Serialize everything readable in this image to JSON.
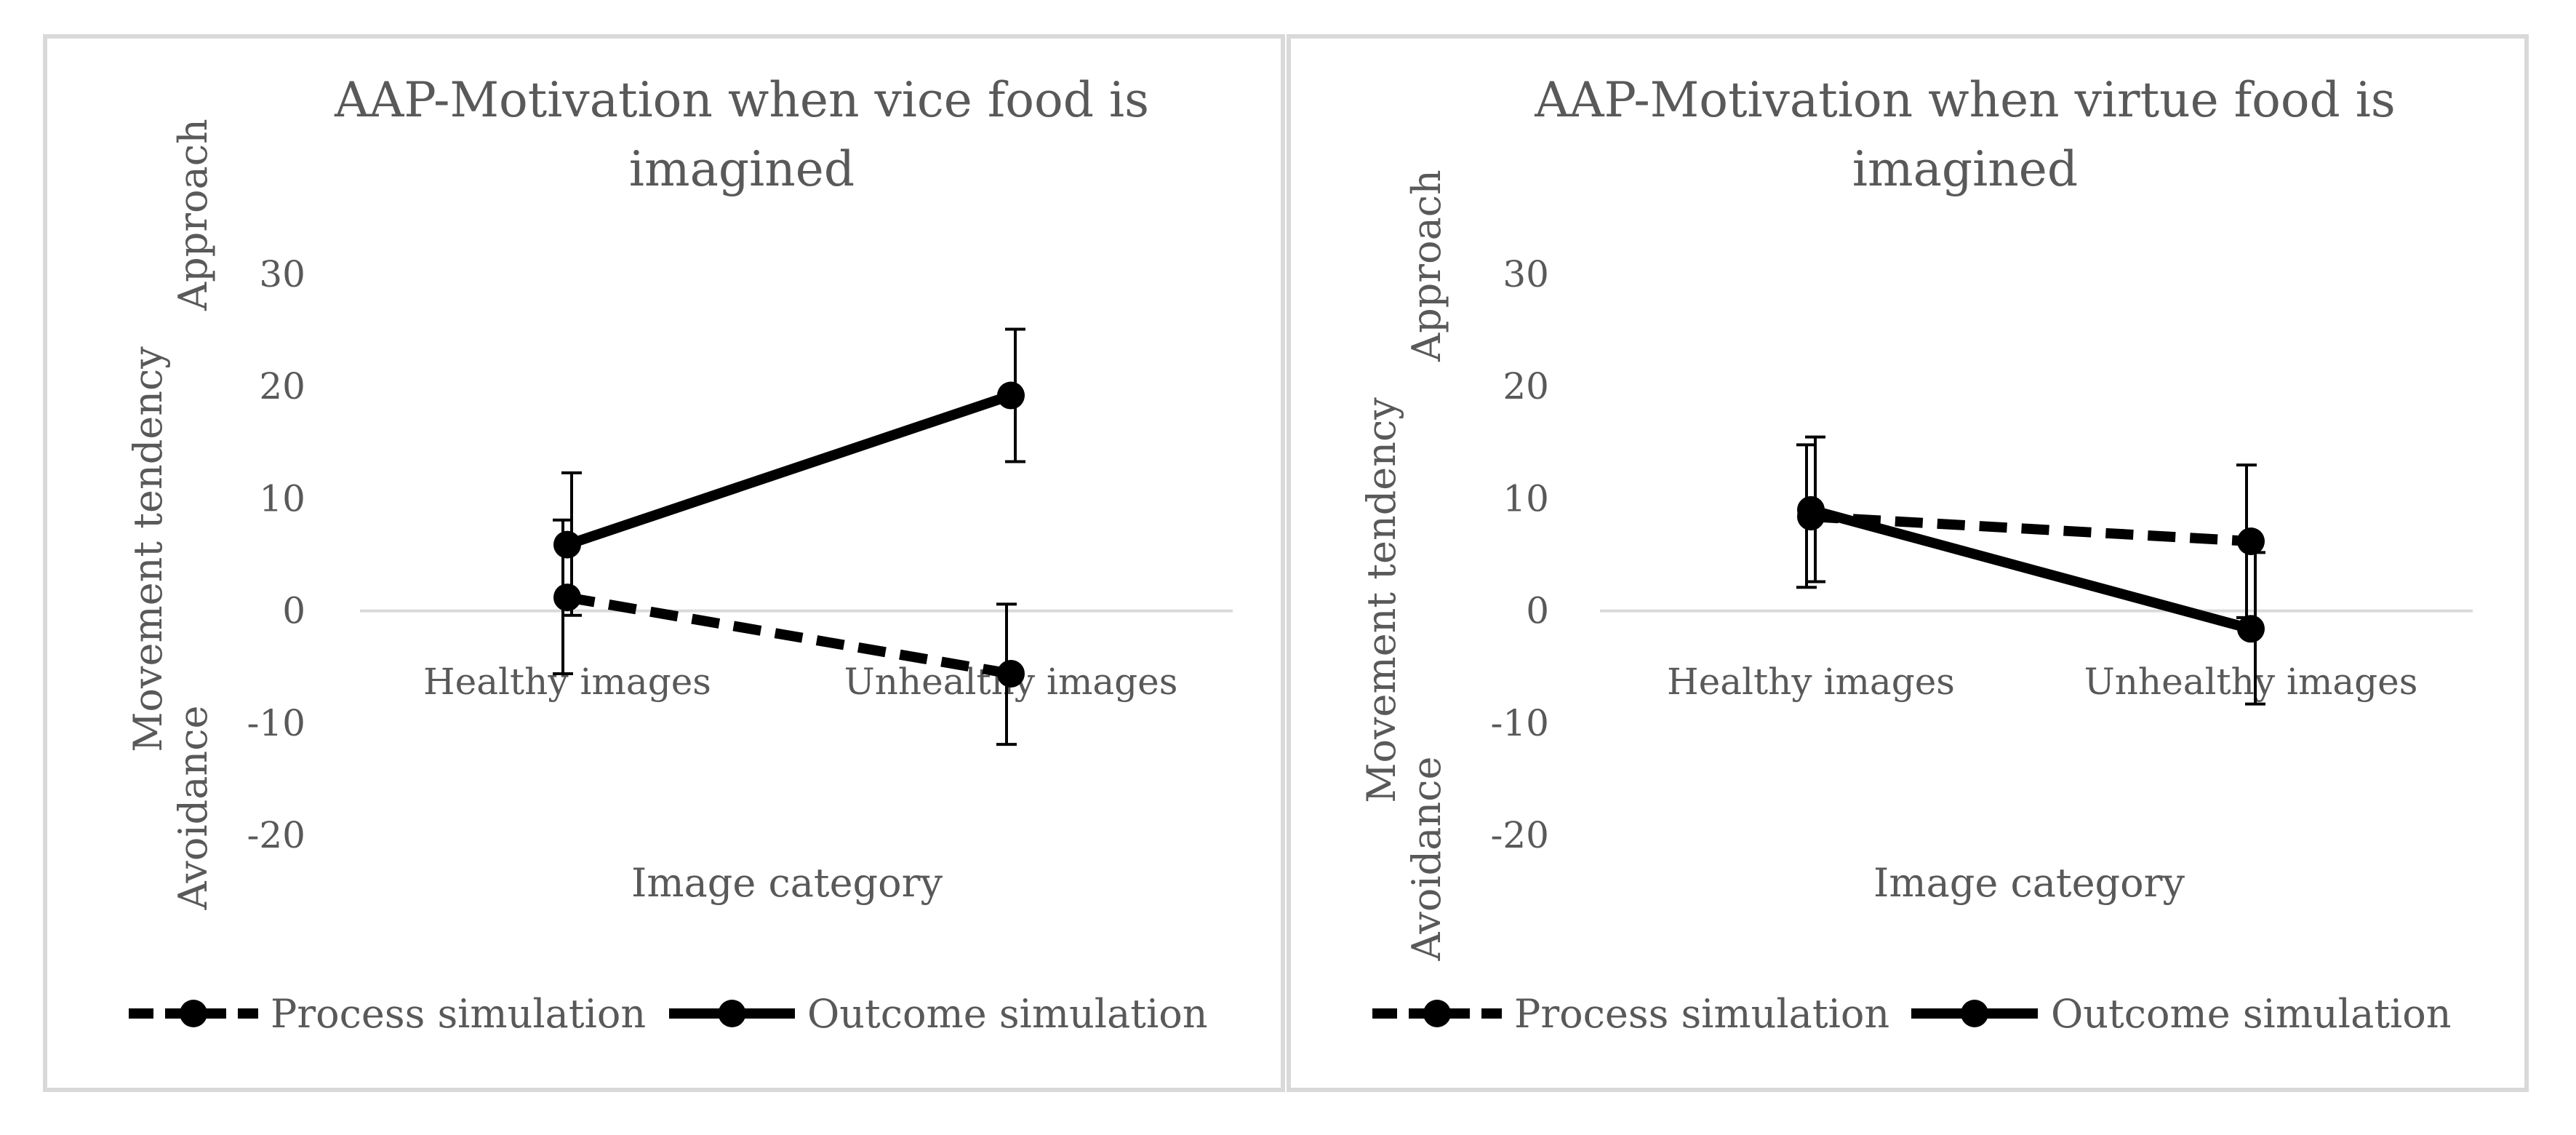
{
  "chart_data": [
    {
      "type": "line",
      "title_lines": [
        "AAP-Motivation when vice food is",
        "imagined"
      ],
      "categories": [
        "Healthy images",
        "Unhealthy images"
      ],
      "xlabel": "Image category",
      "ylabel": "Movement tendency",
      "ylabel_top": "Approach",
      "ylabel_bottom": "Avoidance",
      "ylim": [
        -20,
        30
      ],
      "yticks": [
        "30",
        "20",
        "10",
        "0",
        "-10",
        "-20"
      ],
      "series": [
        {
          "name": "Process simulation",
          "style": "dashed",
          "values": [
            1.2,
            -5.6
          ],
          "err_low": [
            -5.6,
            -11.9
          ],
          "err_high": [
            8.1,
            0.6
          ]
        },
        {
          "name": "Outcome simulation",
          "style": "solid",
          "values": [
            5.9,
            19.2
          ],
          "err_low": [
            -0.4,
            13.3
          ],
          "err_high": [
            12.3,
            25.1
          ]
        }
      ]
    },
    {
      "type": "line",
      "title_lines": [
        "AAP-Motivation when virtue food is",
        "imagined"
      ],
      "categories": [
        "Healthy images",
        "Unhealthy images"
      ],
      "xlabel": "Image category",
      "ylabel": "Movement tendency",
      "ylabel_top": "Approach",
      "ylabel_bottom": "Avoidance",
      "ylim": [
        -20,
        30
      ],
      "yticks": [
        "30",
        "20",
        "10",
        "0",
        "-10",
        "-20"
      ],
      "series": [
        {
          "name": "Process simulation",
          "style": "dashed",
          "values": [
            8.4,
            6.2
          ],
          "err_low": [
            2.1,
            -0.6
          ],
          "err_high": [
            14.8,
            13.0
          ]
        },
        {
          "name": "Outcome simulation",
          "style": "solid",
          "values": [
            9.0,
            -1.6
          ],
          "err_low": [
            2.6,
            -8.3
          ],
          "err_high": [
            15.5,
            5.2
          ]
        }
      ]
    }
  ],
  "colors": {
    "line": "#000000",
    "text": "#595959",
    "axis": "#d9d9d9",
    "frame": "#d9d9d9"
  }
}
